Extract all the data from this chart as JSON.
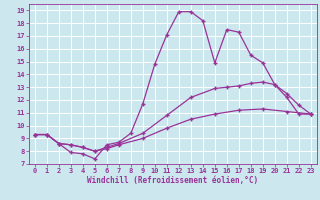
{
  "xlabel": "Windchill (Refroidissement éolien,°C)",
  "bg_color": "#cce8ee",
  "line_color": "#993399",
  "xlim": [
    -0.5,
    23.5
  ],
  "ylim": [
    7,
    19.5
  ],
  "xticks": [
    0,
    1,
    2,
    3,
    4,
    5,
    6,
    7,
    8,
    9,
    10,
    11,
    12,
    13,
    14,
    15,
    16,
    17,
    18,
    19,
    20,
    21,
    22,
    23
  ],
  "yticks": [
    7,
    8,
    9,
    10,
    11,
    12,
    13,
    14,
    15,
    16,
    17,
    18,
    19
  ],
  "line1_x": [
    0,
    1,
    2,
    3,
    4,
    5,
    6,
    7,
    8,
    9,
    10,
    11,
    12,
    13,
    14,
    15,
    16,
    17,
    18,
    19,
    20,
    21,
    22,
    23
  ],
  "line1_y": [
    9.3,
    9.3,
    8.6,
    7.9,
    7.8,
    7.4,
    8.5,
    8.7,
    9.4,
    11.7,
    14.8,
    17.1,
    18.9,
    18.9,
    18.2,
    14.9,
    17.5,
    17.3,
    15.5,
    14.9,
    13.2,
    12.2,
    10.9,
    10.9
  ],
  "line2_x": [
    0,
    1,
    2,
    3,
    4,
    5,
    6,
    7,
    9,
    11,
    13,
    15,
    16,
    17,
    18,
    19,
    20,
    21,
    22,
    23
  ],
  "line2_y": [
    9.3,
    9.3,
    8.6,
    8.5,
    8.3,
    8.0,
    8.3,
    8.6,
    9.4,
    10.8,
    12.2,
    12.9,
    13.0,
    13.1,
    13.3,
    13.4,
    13.2,
    12.5,
    11.6,
    10.9
  ],
  "line3_x": [
    0,
    1,
    2,
    3,
    4,
    5,
    6,
    7,
    9,
    11,
    13,
    15,
    17,
    19,
    21,
    23
  ],
  "line3_y": [
    9.3,
    9.3,
    8.6,
    8.5,
    8.3,
    8.0,
    8.2,
    8.5,
    9.0,
    9.8,
    10.5,
    10.9,
    11.2,
    11.3,
    11.1,
    10.9
  ]
}
